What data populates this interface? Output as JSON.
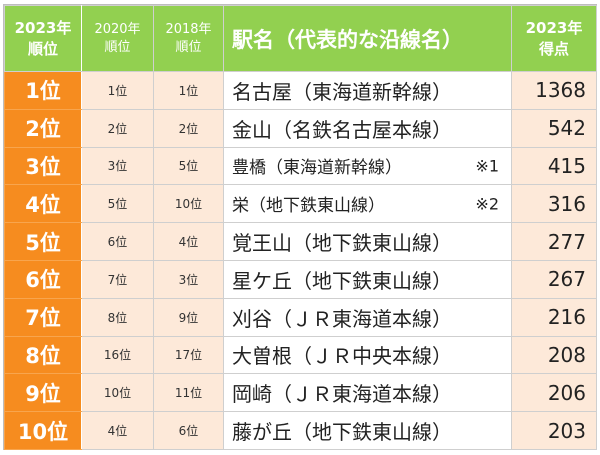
{
  "header": {
    "rank_2023": [
      "2023年",
      "順位"
    ],
    "rank_2020": [
      "2020年",
      "順位"
    ],
    "rank_2018": [
      "2018年",
      "順位"
    ],
    "station": "駅名（代表的な沿線名）",
    "score": [
      "2023年",
      "得点"
    ]
  },
  "rows": [
    {
      "rank": "1位",
      "r2020": "1位",
      "r2018": "1位",
      "station": "名古屋（東海道新幹線）",
      "note": "",
      "score": "1368"
    },
    {
      "rank": "2位",
      "r2020": "2位",
      "r2018": "2位",
      "station": "金山（名鉄名古屋本線）",
      "note": "",
      "score": "542"
    },
    {
      "rank": "3位",
      "r2020": "3位",
      "r2018": "5位",
      "station": "豊橋（東海道新幹線）",
      "note": "※1",
      "score": "415"
    },
    {
      "rank": "4位",
      "r2020": "5位",
      "r2018": "10位",
      "station": "栄（地下鉄東山線）",
      "note": "※2",
      "score": "316"
    },
    {
      "rank": "5位",
      "r2020": "6位",
      "r2018": "4位",
      "station": "覚王山（地下鉄東山線）",
      "note": "",
      "score": "277"
    },
    {
      "rank": "6位",
      "r2020": "7位",
      "r2018": "3位",
      "station": "星ケ丘（地下鉄東山線）",
      "note": "",
      "score": "267"
    },
    {
      "rank": "7位",
      "r2020": "8位",
      "r2018": "9位",
      "station": "刈谷（ＪＲ東海道本線）",
      "note": "",
      "score": "216"
    },
    {
      "rank": "8位",
      "r2020": "16位",
      "r2018": "17位",
      "station": "大曽根（ＪＲ中央本線）",
      "note": "",
      "score": "208"
    },
    {
      "rank": "9位",
      "r2020": "10位",
      "r2018": "11位",
      "station": "岡崎（ＪＲ東海道本線）",
      "note": "",
      "score": "206"
    },
    {
      "rank": "10位",
      "r2020": "4位",
      "r2018": "6位",
      "station": "藤が丘（地下鉄東山線）",
      "note": "",
      "score": "203"
    }
  ]
}
